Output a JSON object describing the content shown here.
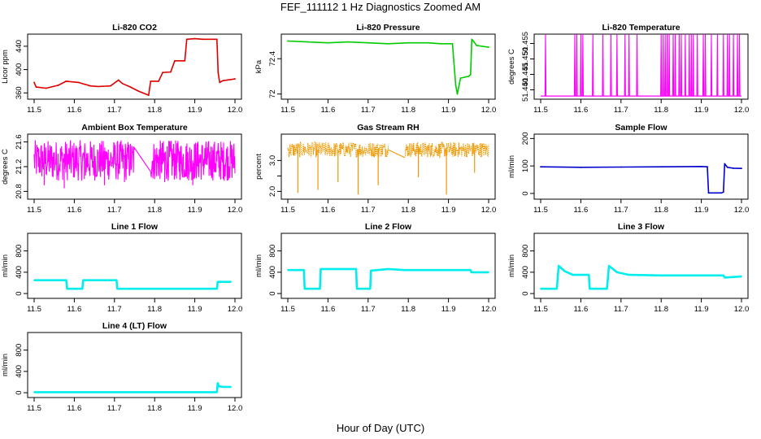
{
  "figure": {
    "title": "FEF_111112  1 Hz Diagnostics Zoomed AM",
    "xlabel": "Hour of Day (UTC)"
  },
  "chart_data": [
    {
      "type": "line",
      "title": "Li-820 CO2",
      "ylabel": "Licor ppm",
      "color": "#dd0000",
      "xlim": [
        11.5,
        12.0
      ],
      "ylim": [
        352,
        458
      ],
      "xticks": [
        "11.5",
        "11.6",
        "11.7",
        "11.8",
        "11.9",
        "12.0"
      ],
      "yticks": [
        360,
        400,
        440
      ],
      "style": "step",
      "x": [
        11.5,
        11.505,
        11.53,
        11.56,
        11.58,
        11.61,
        11.64,
        11.66,
        11.69,
        11.71,
        11.72,
        11.74,
        11.76,
        11.785,
        11.79,
        11.81,
        11.82,
        11.84,
        11.85,
        11.875,
        11.88,
        11.9,
        11.92,
        11.955,
        11.958,
        11.962,
        11.97,
        11.99,
        12.0
      ],
      "y": [
        378,
        370,
        368,
        373,
        380,
        378,
        372,
        371,
        372,
        382,
        376,
        370,
        363,
        356,
        380,
        380,
        395,
        396,
        415,
        415,
        452,
        453,
        452,
        452,
        395,
        378,
        381,
        383,
        384
      ]
    },
    {
      "type": "line",
      "title": "Li-820 Pressure",
      "ylabel": "kPa",
      "color": "#00cc00",
      "xlim": [
        11.5,
        12.0
      ],
      "ylim": [
        71.96,
        72.66
      ],
      "xticks": [
        "11.5",
        "11.6",
        "11.7",
        "11.8",
        "11.9",
        "12.0"
      ],
      "yticks": [
        72.0,
        72.4
      ],
      "x": [
        11.5,
        11.55,
        11.6,
        11.65,
        11.7,
        11.75,
        11.8,
        11.85,
        11.88,
        11.91,
        11.918,
        11.922,
        11.93,
        11.95,
        11.955,
        11.958,
        11.962,
        11.97,
        11.985,
        12.0
      ],
      "y": [
        72.6,
        72.59,
        72.58,
        72.59,
        72.58,
        72.57,
        72.58,
        72.58,
        72.57,
        72.57,
        72.1,
        72.0,
        72.18,
        72.2,
        72.22,
        72.62,
        72.6,
        72.55,
        72.54,
        72.53
      ]
    },
    {
      "type": "line",
      "title": "Li-820 Temperature",
      "ylabel": "degrees C",
      "color": "#ff00ff",
      "xlim": [
        11.5,
        12.0
      ],
      "ylim": [
        51.4375,
        51.4575
      ],
      "xticks": [
        "11.5",
        "11.6",
        "11.7",
        "11.8",
        "11.9",
        "12.0"
      ],
      "yticks": [
        51.44,
        51.445,
        51.45,
        51.455
      ],
      "ytick_labels": [
        "51.440",
        "51.445",
        "51.450",
        "51.455"
      ],
      "baseline": 51.438,
      "peak": 51.458,
      "spikes_x": [
        11.512,
        11.585,
        11.59,
        11.6,
        11.605,
        11.63,
        11.655,
        11.675,
        11.69,
        11.71,
        11.72,
        11.74,
        11.8,
        11.805,
        11.81,
        11.815,
        11.82,
        11.83,
        11.835,
        11.845,
        11.85,
        11.86,
        11.87,
        11.875,
        11.88,
        11.89,
        11.905,
        11.91,
        11.925,
        11.94,
        11.955,
        11.965,
        11.97,
        11.98,
        11.99,
        11.995
      ]
    },
    {
      "type": "line",
      "title": "Ambient Box Temperature",
      "ylabel": "degrees C",
      "color": "#ff00ff",
      "xlim": [
        11.5,
        12.0
      ],
      "ylim": [
        20.7,
        21.7
      ],
      "xticks": [
        "11.5",
        "11.6",
        "11.7",
        "11.8",
        "11.9",
        "12.0"
      ],
      "yticks": [
        20.8,
        21.2,
        21.6
      ],
      "style": "noise",
      "segments": [
        {
          "x": [
            11.5,
            11.75
          ],
          "base": 21.3,
          "amp": 0.33,
          "dips": [
            20.9,
            20.85,
            21.0,
            20.9,
            20.95
          ]
        },
        {
          "x": [
            11.79,
            12.0
          ],
          "base": 21.3,
          "amp": 0.33,
          "dips": [
            20.95,
            20.9,
            21.0
          ]
        }
      ],
      "connector": {
        "x": [
          11.75,
          11.79
        ],
        "y": [
          21.5,
          21.12
        ]
      }
    },
    {
      "type": "line",
      "title": "Gas Stream RH",
      "ylabel": "percent",
      "color": "#ee9900",
      "xlim": [
        11.5,
        12.0
      ],
      "ylim": [
        1.8,
        3.8
      ],
      "xticks": [
        "11.5",
        "11.6",
        "11.7",
        "11.8",
        "11.9",
        "12.0"
      ],
      "yticks": [
        2.0,
        2.5,
        3.0
      ],
      "ytick_labels": [
        "2.0",
        "",
        "3.0"
      ],
      "style": "noise",
      "segments": [
        {
          "x": [
            11.5,
            11.75
          ],
          "base": 3.35,
          "amp": 0.25,
          "dips": [
            1.95,
            2.05,
            2.3,
            1.9,
            2.2
          ]
        },
        {
          "x": [
            11.79,
            12.0
          ],
          "base": 3.35,
          "amp": 0.25,
          "dips": [
            2.45,
            1.9,
            2.6
          ]
        }
      ],
      "connector": {
        "x": [
          11.75,
          11.79
        ],
        "y": [
          3.35,
          3.1
        ]
      }
    },
    {
      "type": "line",
      "title": "Sample Flow",
      "ylabel": "ml/min",
      "color": "#0000cc",
      "xlim": [
        11.5,
        12.0
      ],
      "ylim": [
        -15,
        210
      ],
      "xticks": [
        "11.5",
        "11.6",
        "11.7",
        "11.8",
        "11.9",
        "12.0"
      ],
      "yticks": [
        0,
        100,
        200
      ],
      "x": [
        11.5,
        11.6,
        11.7,
        11.8,
        11.9,
        11.915,
        11.918,
        11.95,
        11.955,
        11.958,
        11.965,
        11.98,
        12.0
      ],
      "y": [
        97,
        95,
        96,
        97,
        98,
        97,
        2,
        2,
        5,
        108,
        95,
        92,
        91
      ]
    },
    {
      "type": "line",
      "title": "Line 1 Flow",
      "ylabel": "ml/min",
      "color": "#00eeee",
      "xlim": [
        11.5,
        12.0
      ],
      "ylim": [
        -60,
        1100
      ],
      "xticks": [
        "11.5",
        "11.6",
        "11.7",
        "11.8",
        "11.9",
        "12.0"
      ],
      "yticks": [
        0,
        400,
        800
      ],
      "style": "step",
      "x": [
        11.5,
        11.58,
        11.582,
        11.62,
        11.622,
        11.705,
        11.707,
        11.955,
        11.957,
        11.99
      ],
      "y": [
        250,
        250,
        90,
        90,
        250,
        250,
        90,
        90,
        220,
        220
      ]
    },
    {
      "type": "line",
      "title": "Line 2 Flow",
      "ylabel": "ml/min",
      "color": "#00eeee",
      "xlim": [
        11.5,
        12.0
      ],
      "ylim": [
        -60,
        1100
      ],
      "xticks": [
        "11.5",
        "11.6",
        "11.7",
        "11.8",
        "11.9",
        "12.0"
      ],
      "yticks": [
        0,
        400,
        800
      ],
      "style": "step",
      "x": [
        11.5,
        11.54,
        11.542,
        11.58,
        11.582,
        11.67,
        11.672,
        11.705,
        11.707,
        11.75,
        11.79,
        11.955,
        11.957,
        12.0
      ],
      "y": [
        440,
        440,
        90,
        90,
        460,
        460,
        90,
        90,
        430,
        460,
        440,
        440,
        400,
        400
      ]
    },
    {
      "type": "line",
      "title": "Line 3 Flow",
      "ylabel": "ml/min",
      "color": "#00eeee",
      "xlim": [
        11.5,
        12.0
      ],
      "ylim": [
        -60,
        1100
      ],
      "xticks": [
        "11.5",
        "11.6",
        "11.7",
        "11.8",
        "11.9",
        "12.0"
      ],
      "yticks": [
        0,
        400,
        800
      ],
      "style": "step",
      "x": [
        11.5,
        11.54,
        11.545,
        11.56,
        11.58,
        11.62,
        11.622,
        11.665,
        11.67,
        11.69,
        11.72,
        11.8,
        11.9,
        11.955,
        11.958,
        12.0
      ],
      "y": [
        90,
        90,
        520,
        420,
        350,
        350,
        90,
        90,
        520,
        400,
        350,
        340,
        340,
        340,
        300,
        320
      ]
    },
    {
      "type": "line",
      "title": "Line 4 (LT) Flow",
      "ylabel": "ml/min",
      "color": "#00eeee",
      "xlim": [
        11.5,
        12.0
      ],
      "ylim": [
        -60,
        1100
      ],
      "xticks": [
        "11.5",
        "11.6",
        "11.7",
        "11.8",
        "11.9",
        "12.0"
      ],
      "yticks": [
        0,
        400,
        800
      ],
      "x": [
        11.5,
        11.6,
        11.7,
        11.8,
        11.9,
        11.955,
        11.957,
        11.96,
        11.97,
        11.99
      ],
      "y": [
        10,
        10,
        10,
        10,
        10,
        10,
        180,
        120,
        110,
        110
      ]
    }
  ]
}
